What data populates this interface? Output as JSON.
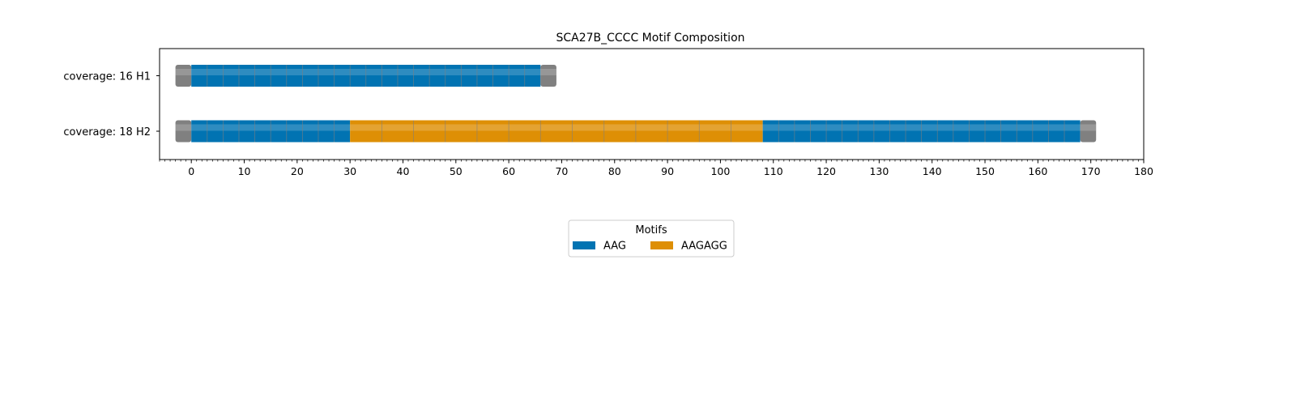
{
  "chart_data": {
    "type": "bar",
    "title": "SCA27B_CCCC Motif Composition",
    "xlim": [
      -6,
      180
    ],
    "x_major_ticks": [
      0,
      10,
      20,
      30,
      40,
      50,
      60,
      70,
      80,
      90,
      100,
      110,
      120,
      130,
      140,
      150,
      160,
      170,
      180
    ],
    "x_minor_tick_step": 1,
    "grid": false,
    "legend": {
      "title": "Motifs",
      "placement": "bottom-center",
      "entries": [
        {
          "label": "AAG",
          "color": "#0173b2"
        },
        {
          "label": "AAGAGG",
          "color": "#de8f05"
        }
      ]
    },
    "flank_color": "#808080",
    "rows": [
      {
        "label": "coverage: 16  H1",
        "start": -3,
        "end": 69,
        "segments": [
          {
            "motif": "flank",
            "start": -3,
            "end": 0
          },
          {
            "motif": "AAG",
            "start": 0,
            "end": 66,
            "unit": 3
          },
          {
            "motif": "flank",
            "start": 66,
            "end": 69
          }
        ]
      },
      {
        "label": "coverage: 18  H2",
        "start": -3,
        "end": 171,
        "segments": [
          {
            "motif": "flank",
            "start": -3,
            "end": 0
          },
          {
            "motif": "AAG",
            "start": 0,
            "end": 30,
            "unit": 3
          },
          {
            "motif": "AAGAGG",
            "start": 30,
            "end": 108,
            "unit": 6
          },
          {
            "motif": "AAG",
            "start": 108,
            "end": 168,
            "unit": 3
          },
          {
            "motif": "flank",
            "start": 168,
            "end": 171
          }
        ]
      }
    ]
  }
}
